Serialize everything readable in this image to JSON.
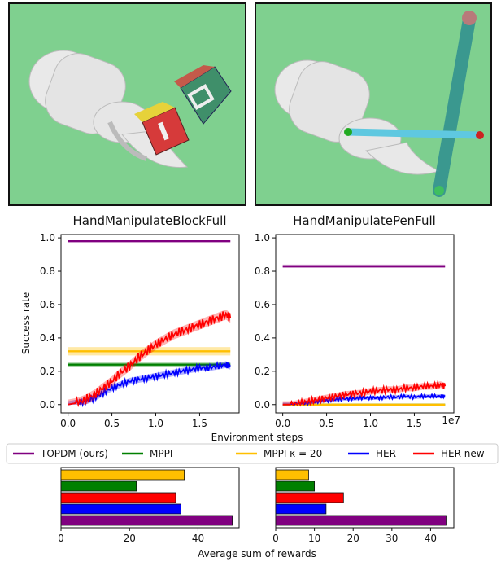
{
  "chart_data": [
    {
      "type": "line",
      "title": "HandManipulateBlockFull",
      "xlabel": "Environment steps",
      "ylabel": "Success rate",
      "x_scale_label": "",
      "xlim": [
        -0.08,
        1.95
      ],
      "ylim": [
        -0.05,
        1.02
      ],
      "xticks": [
        0.0,
        0.5,
        1.0,
        1.5
      ],
      "xtick_labels": [
        "0.0",
        "0.5",
        "1.0",
        "1.5"
      ],
      "yticks": [
        0.0,
        0.2,
        0.4,
        0.6,
        0.8,
        1.0
      ],
      "ytick_labels": [
        "0.0",
        "0.2",
        "0.4",
        "0.6",
        "0.8",
        "1.0"
      ],
      "x": [
        0.0,
        0.1,
        0.2,
        0.3,
        0.4,
        0.5,
        0.6,
        0.7,
        0.8,
        0.9,
        1.0,
        1.1,
        1.2,
        1.3,
        1.4,
        1.5,
        1.6,
        1.7,
        1.8,
        1.85
      ],
      "series": [
        {
          "name": "TOPDM (ours)",
          "color": "#800080",
          "constant": 0.98,
          "band": 0.005
        },
        {
          "name": "MPPI",
          "color": "#008000",
          "constant": 0.24,
          "band": 0.012
        },
        {
          "name": "MPPI κ = 20",
          "color": "#ffbf00",
          "constant": 0.32,
          "band": 0.025
        },
        {
          "name": "HER",
          "color": "#0000ff",
          "band": 0.02,
          "values": [
            0.0,
            0.01,
            0.02,
            0.04,
            0.07,
            0.1,
            0.12,
            0.14,
            0.15,
            0.16,
            0.17,
            0.18,
            0.19,
            0.2,
            0.21,
            0.22,
            0.22,
            0.23,
            0.24,
            0.23
          ]
        },
        {
          "name": "HER new",
          "color": "#ff0000",
          "band": 0.03,
          "values": [
            0.0,
            0.01,
            0.03,
            0.06,
            0.1,
            0.14,
            0.19,
            0.23,
            0.28,
            0.32,
            0.36,
            0.39,
            0.42,
            0.44,
            0.46,
            0.48,
            0.5,
            0.52,
            0.54,
            0.52
          ]
        }
      ]
    },
    {
      "type": "line",
      "title": "HandManipulatePenFull",
      "xlabel": "Environment steps",
      "ylabel": "",
      "x_scale_label": "1e7",
      "xlim": [
        -0.08,
        1.95
      ],
      "ylim": [
        -0.05,
        1.02
      ],
      "xticks": [
        0.0,
        0.5,
        1.0,
        1.5
      ],
      "xtick_labels": [
        "0.0",
        "0.5",
        "1.0",
        "1.5"
      ],
      "yticks": [
        0.0,
        0.2,
        0.4,
        0.6,
        0.8,
        1.0
      ],
      "ytick_labels": [
        "0.0",
        "0.2",
        "0.4",
        "0.6",
        "0.8",
        "1.0"
      ],
      "x": [
        0.0,
        0.1,
        0.2,
        0.3,
        0.4,
        0.5,
        0.6,
        0.7,
        0.8,
        0.9,
        1.0,
        1.1,
        1.2,
        1.3,
        1.4,
        1.5,
        1.6,
        1.7,
        1.8,
        1.85
      ],
      "series": [
        {
          "name": "TOPDM (ours)",
          "color": "#800080",
          "constant": 0.83,
          "band": 0.01
        },
        {
          "name": "MPPI",
          "color": "#008000",
          "constant": 0.0,
          "band": 0.0
        },
        {
          "name": "MPPI κ = 20",
          "color": "#ffbf00",
          "constant": 0.0,
          "band": 0.0
        },
        {
          "name": "HER",
          "color": "#0000ff",
          "band": 0.012,
          "values": [
            0.0,
            0.0,
            0.005,
            0.01,
            0.02,
            0.025,
            0.03,
            0.035,
            0.035,
            0.04,
            0.04,
            0.04,
            0.045,
            0.045,
            0.05,
            0.045,
            0.05,
            0.05,
            0.05,
            0.05
          ]
        },
        {
          "name": "HER new",
          "color": "#ff0000",
          "band": 0.02,
          "values": [
            0.0,
            0.0,
            0.01,
            0.02,
            0.03,
            0.04,
            0.05,
            0.06,
            0.065,
            0.07,
            0.08,
            0.085,
            0.09,
            0.09,
            0.1,
            0.1,
            0.11,
            0.11,
            0.12,
            0.11
          ]
        }
      ]
    },
    {
      "type": "bar",
      "orientation": "horizontal",
      "xlabel": "",
      "xlim": [
        0,
        52
      ],
      "xticks": [
        0,
        20,
        40
      ],
      "xtick_labels": [
        "0",
        "20",
        "40"
      ],
      "categories": [
        "MPPI κ = 20",
        "MPPI",
        "HER new",
        "HER",
        "TOPDM (ours)"
      ],
      "colors": [
        "#ffbf00",
        "#008000",
        "#ff0000",
        "#0000ff",
        "#800080"
      ],
      "values": [
        36,
        22,
        33.5,
        35,
        50
      ]
    },
    {
      "type": "bar",
      "orientation": "horizontal",
      "xlabel": "",
      "xlim": [
        0,
        46
      ],
      "xticks": [
        0,
        10,
        20,
        30,
        40
      ],
      "xtick_labels": [
        "0",
        "10",
        "20",
        "30",
        "40"
      ],
      "categories": [
        "MPPI κ = 20",
        "MPPI",
        "HER new",
        "HER",
        "TOPDM (ours)"
      ],
      "colors": [
        "#ffbf00",
        "#008000",
        "#ff0000",
        "#0000ff",
        "#800080"
      ],
      "values": [
        8.5,
        10,
        17.5,
        13,
        44
      ]
    }
  ],
  "shared_xlabel": "Environment steps",
  "bar_xlabel": "Average sum of rewards",
  "legend": {
    "placement": "between-panels",
    "entries": [
      {
        "label": "TOPDM (ours)",
        "color": "#800080"
      },
      {
        "label": "MPPI",
        "color": "#008000"
      },
      {
        "label": "MPPI κ = 20",
        "color": "#ffbf00"
      },
      {
        "label": "HER",
        "color": "#0000ff"
      },
      {
        "label": "HER new",
        "color": "#ff0000"
      }
    ]
  },
  "colors": {
    "scene_background": "#7fcf8f",
    "hand": "#e6e6e6"
  }
}
